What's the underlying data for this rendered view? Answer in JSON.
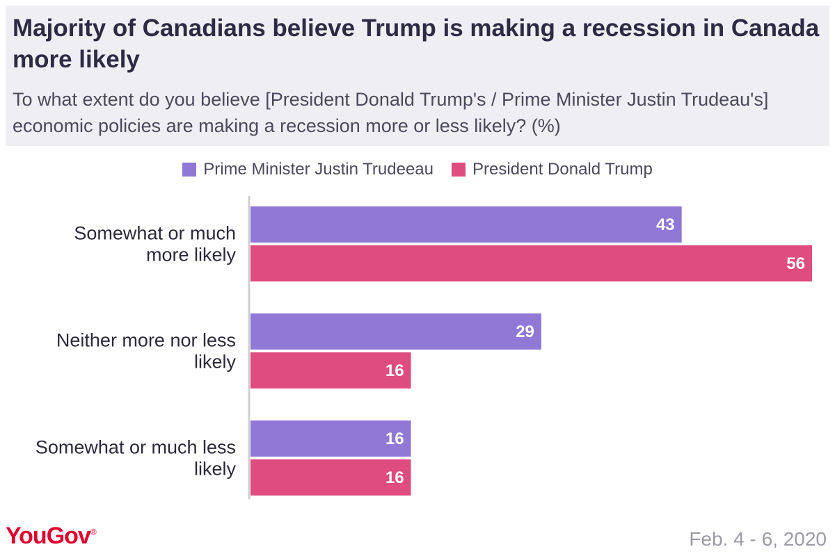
{
  "header": {
    "title": "Majority of Canadians believe Trump is making a recession in Canada more likely",
    "subtitle": "To what extent do you believe [President Donald Trump's / Prime Minister Justin Trudeau's] economic policies are making a recession more or less likely? (%)"
  },
  "footer": {
    "logo": "YouGov",
    "date": "Feb. 4 - 6, 2020"
  },
  "colors": {
    "trudeau": "#9078d6",
    "trump": "#de4c80",
    "axis": "#d0d0d0"
  },
  "chart_data": {
    "type": "bar",
    "orientation": "horizontal",
    "title": "Majority of Canadians believe Trump is making a recession in Canada more likely",
    "xlim": [
      0,
      56
    ],
    "legend_position": "top-center",
    "categories": [
      [
        "Somewhat or much",
        "more likely"
      ],
      [
        "Neither more nor less",
        "likely"
      ],
      [
        "Somewhat or much less",
        "likely"
      ]
    ],
    "series": [
      {
        "name": "Prime Minister Justin Trudeeau",
        "color": "#9078d6",
        "values": [
          43,
          29,
          16
        ]
      },
      {
        "name": "President Donald Trump",
        "color": "#de4c80",
        "values": [
          56,
          16,
          16
        ]
      }
    ]
  }
}
